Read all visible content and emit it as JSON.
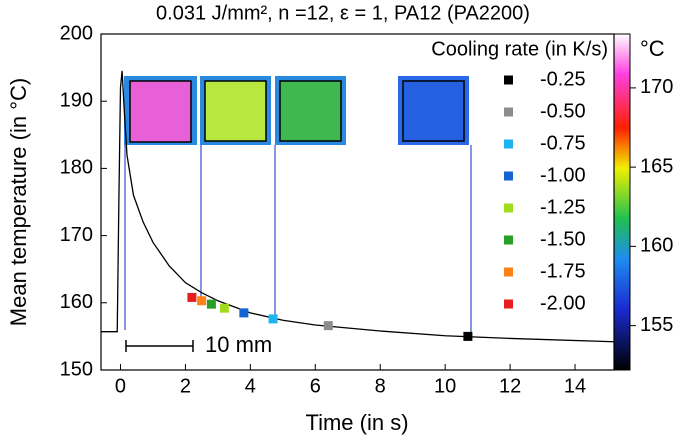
{
  "chart_data": {
    "type": "line",
    "title": "0.031 J/mm², n =12, ε = 1, PA12 (PA2200)",
    "x_label": "Time (in s)",
    "y_label": "Mean temperature (in °C)",
    "xlim": [
      -0.6,
      15.2
    ],
    "ylim": [
      150,
      200
    ],
    "xticks": [
      0,
      2,
      4,
      6,
      8,
      10,
      12,
      14
    ],
    "yticks": [
      150,
      160,
      170,
      180,
      190,
      200
    ],
    "legend_title": "Cooling rate (in K/s)",
    "legend_position": "upper right",
    "scale_bar": "10 mm",
    "series": [
      {
        "color": "#000000",
        "x": [
          -0.6,
          -0.1,
          -0.05,
          0,
          0.05,
          0.1,
          0.2,
          0.4,
          0.7,
          1,
          1.5,
          2,
          2.5,
          3,
          4,
          5,
          6,
          8,
          10,
          12,
          15.2
        ],
        "values": [
          155.7,
          155.7,
          175,
          192,
          194.5,
          190,
          182,
          176,
          172,
          169,
          165.5,
          163,
          161.5,
          160.3,
          158.5,
          157.4,
          156.7,
          155.8,
          155.1,
          154.7,
          154.2
        ]
      },
      {
        "type": "scatter",
        "name": "-0.25",
        "color": "#000000",
        "x": [
          10.7
        ],
        "values": [
          155.0
        ]
      },
      {
        "type": "scatter",
        "name": "-0.50",
        "color": "#8c8c8c",
        "x": [
          6.4
        ],
        "values": [
          156.6
        ]
      },
      {
        "type": "scatter",
        "name": "-0.75",
        "color": "#1eb4f0",
        "x": [
          4.7
        ],
        "values": [
          157.6
        ]
      },
      {
        "type": "scatter",
        "name": "-1.00",
        "color": "#1464d2",
        "x": [
          3.8
        ],
        "values": [
          158.5
        ]
      },
      {
        "type": "scatter",
        "name": "-1.25",
        "color": "#a0dc1e",
        "x": [
          3.2
        ],
        "values": [
          159.2
        ]
      },
      {
        "type": "scatter",
        "name": "-1.50",
        "color": "#28a028",
        "x": [
          2.8
        ],
        "values": [
          159.8
        ]
      },
      {
        "type": "scatter",
        "name": "-1.75",
        "color": "#ff8214",
        "x": [
          2.5
        ],
        "values": [
          160.3
        ]
      },
      {
        "type": "scatter",
        "name": "-2.00",
        "color": "#e61e1e",
        "x": [
          2.2
        ],
        "values": [
          160.8
        ]
      }
    ],
    "colorbar": {
      "label": "°C",
      "lim": [
        152.2,
        173.4
      ],
      "ticks": [
        155,
        160,
        165,
        170
      ]
    }
  }
}
